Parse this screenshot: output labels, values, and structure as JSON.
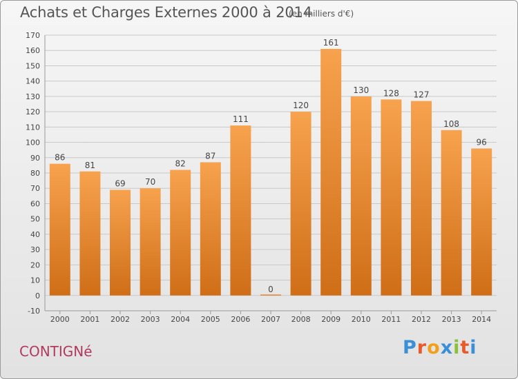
{
  "header": {
    "title": "Achats et Charges Externes 2000 à 2014",
    "unit": "(en milliers d'€)"
  },
  "footer": {
    "town": "CONTIGNé",
    "brand": "Proxiti"
  },
  "colors": {
    "bar_top": "#f7a24e",
    "bar_bottom": "#cf6e17",
    "grid": "#c8c8c8",
    "axis_text": "#444444",
    "town": "#b03a5e"
  },
  "chart_data": {
    "type": "bar",
    "title": "Achats et Charges Externes 2000 à 2014",
    "subtitle": "(en milliers d'€)",
    "categories": [
      "2000",
      "2001",
      "2002",
      "2003",
      "2004",
      "2005",
      "2006",
      "2007",
      "2008",
      "2009",
      "2010",
      "2011",
      "2012",
      "2013",
      "2014"
    ],
    "values": [
      86,
      81,
      69,
      70,
      82,
      87,
      111,
      0,
      120,
      161,
      130,
      128,
      127,
      108,
      96
    ],
    "ylim": [
      -10,
      170
    ],
    "yticks": [
      -10,
      0,
      10,
      20,
      30,
      40,
      50,
      60,
      70,
      80,
      90,
      100,
      110,
      120,
      130,
      140,
      150,
      160,
      170
    ],
    "grid": true,
    "data_labels": true
  }
}
